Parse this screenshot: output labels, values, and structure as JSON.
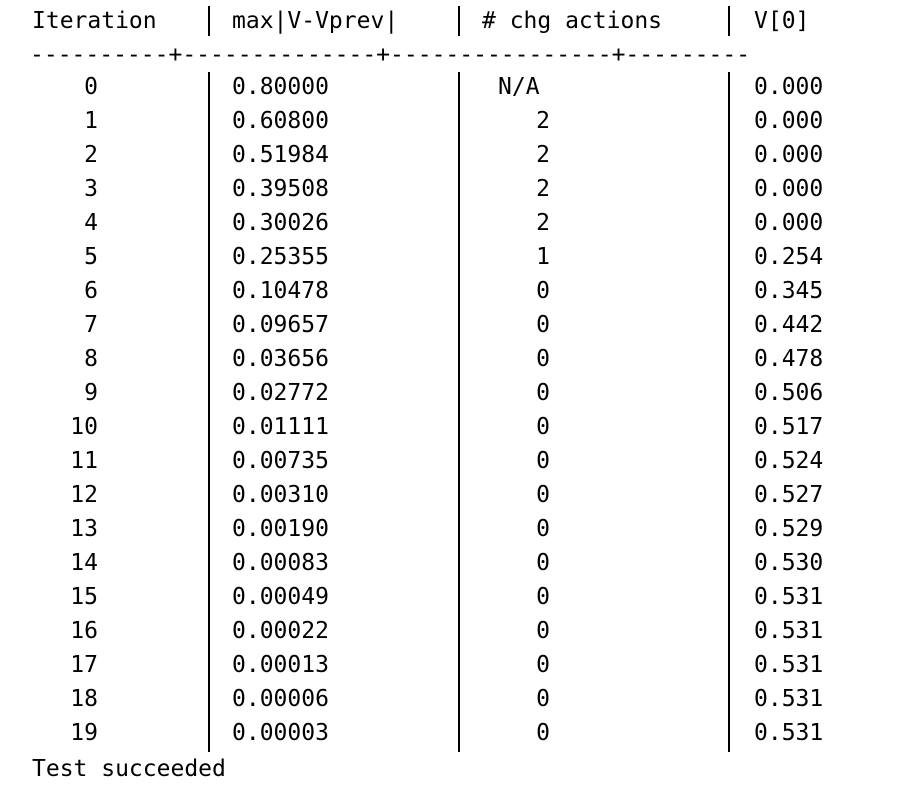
{
  "header": {
    "iteration": "Iteration",
    "max_diff": "max|V-Vprev|",
    "chg_actions": "# chg actions",
    "v0": "V[0]"
  },
  "rule": "----------+--------------+----------------+---------",
  "rows": [
    {
      "iter": "0",
      "max": "0.80000",
      "chg": "N/A",
      "v0": "0.000"
    },
    {
      "iter": "1",
      "max": "0.60800",
      "chg": "2",
      "v0": "0.000"
    },
    {
      "iter": "2",
      "max": "0.51984",
      "chg": "2",
      "v0": "0.000"
    },
    {
      "iter": "3",
      "max": "0.39508",
      "chg": "2",
      "v0": "0.000"
    },
    {
      "iter": "4",
      "max": "0.30026",
      "chg": "2",
      "v0": "0.000"
    },
    {
      "iter": "5",
      "max": "0.25355",
      "chg": "1",
      "v0": "0.254"
    },
    {
      "iter": "6",
      "max": "0.10478",
      "chg": "0",
      "v0": "0.345"
    },
    {
      "iter": "7",
      "max": "0.09657",
      "chg": "0",
      "v0": "0.442"
    },
    {
      "iter": "8",
      "max": "0.03656",
      "chg": "0",
      "v0": "0.478"
    },
    {
      "iter": "9",
      "max": "0.02772",
      "chg": "0",
      "v0": "0.506"
    },
    {
      "iter": "10",
      "max": "0.01111",
      "chg": "0",
      "v0": "0.517"
    },
    {
      "iter": "11",
      "max": "0.00735",
      "chg": "0",
      "v0": "0.524"
    },
    {
      "iter": "12",
      "max": "0.00310",
      "chg": "0",
      "v0": "0.527"
    },
    {
      "iter": "13",
      "max": "0.00190",
      "chg": "0",
      "v0": "0.529"
    },
    {
      "iter": "14",
      "max": "0.00083",
      "chg": "0",
      "v0": "0.530"
    },
    {
      "iter": "15",
      "max": "0.00049",
      "chg": "0",
      "v0": "0.531"
    },
    {
      "iter": "16",
      "max": "0.00022",
      "chg": "0",
      "v0": "0.531"
    },
    {
      "iter": "17",
      "max": "0.00013",
      "chg": "0",
      "v0": "0.531"
    },
    {
      "iter": "18",
      "max": "0.00006",
      "chg": "0",
      "v0": "0.531"
    },
    {
      "iter": "19",
      "max": "0.00003",
      "chg": "0",
      "v0": "0.531"
    }
  ],
  "status": "Test succeeded",
  "colors": {
    "text": "#000000",
    "background": "#ffffff"
  }
}
